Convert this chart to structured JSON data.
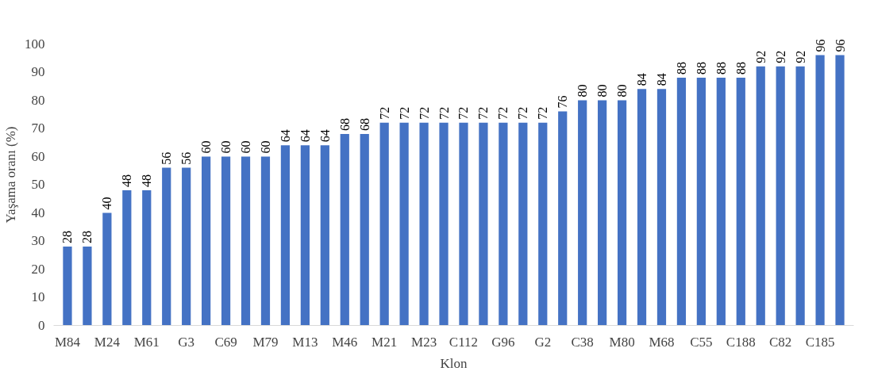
{
  "chart_data": {
    "type": "bar",
    "xlabel": "Klon",
    "ylabel": "Yaşama oranı (%)",
    "categories": [
      "M84",
      null,
      "M24",
      null,
      "M61",
      null,
      "G3",
      null,
      "C69",
      null,
      "M79",
      null,
      "M13",
      null,
      "M46",
      null,
      "M21",
      null,
      "M23",
      null,
      "C112",
      null,
      "G96",
      null,
      "G2",
      null,
      "C38",
      null,
      "M80",
      null,
      "M68",
      null,
      "C55",
      null,
      "C188",
      null,
      "C82",
      null,
      "C185",
      null
    ],
    "values": [
      28,
      28,
      40,
      48,
      48,
      56,
      56,
      60,
      60,
      60,
      60,
      64,
      64,
      64,
      68,
      68,
      72,
      72,
      72,
      72,
      72,
      72,
      72,
      72,
      72,
      76,
      80,
      80,
      80,
      84,
      84,
      88,
      88,
      88,
      88,
      92,
      92,
      92,
      96,
      96
    ],
    "color": "#4472c4",
    "ylim": [
      0,
      100
    ],
    "yticks": [
      0,
      10,
      20,
      30,
      40,
      50,
      60,
      70,
      80,
      90,
      100
    ],
    "grid": false,
    "data_labels": true
  }
}
